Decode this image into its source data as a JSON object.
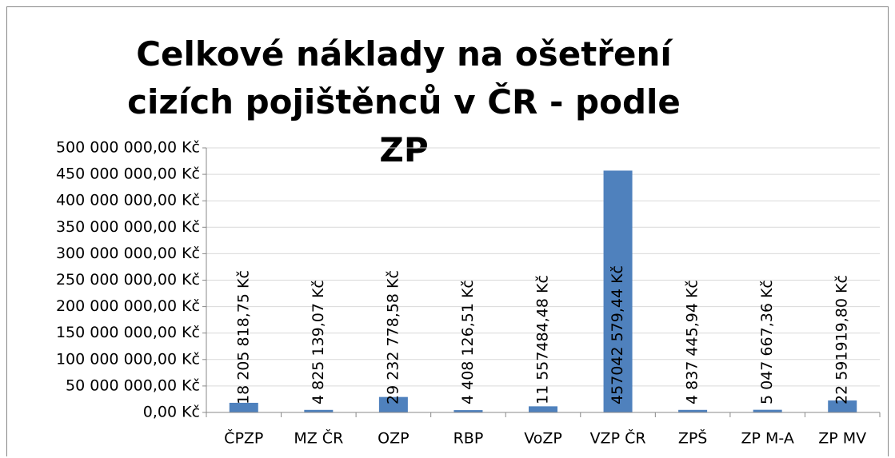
{
  "chart_data": {
    "type": "bar",
    "title": "Celkové náklady na ošetření cizích pojištěnců v ČR - podle ZP",
    "categories": [
      "ČPZP",
      "MZ ČR",
      "OZP",
      "RBP",
      "VoZP",
      "VZP ČR",
      "ZPŠ",
      "ZP M-A",
      "ZP MV"
    ],
    "values": [
      18205818.75,
      4825139.07,
      29232778.58,
      4408126.51,
      11557484.48,
      457042579.44,
      4837445.94,
      5047667.36,
      22591919.8
    ],
    "value_labels": [
      "18 205 818,75 Kč",
      "4 825 139,07 Kč",
      "29 232 778,58 Kč",
      "4 408 126,51 Kč",
      "11 557484,48 Kč",
      "457042 579,44 Kč",
      "4 837 445,94 Kč",
      "5 047 667,36 Kč",
      "22 591919,80 Kč"
    ],
    "color": "#4f81bd",
    "ylim": [
      0,
      500000000
    ],
    "yticks": [
      {
        "value": 0,
        "label": "0,00 Kč"
      },
      {
        "value": 50000000,
        "label": "50 000 000,00 Kč"
      },
      {
        "value": 100000000,
        "label": "100 000 000,00 Kč"
      },
      {
        "value": 150000000,
        "label": "150 000 000,00 Kč"
      },
      {
        "value": 200000000,
        "label": "200 000 000,00 Kč"
      },
      {
        "value": 250000000,
        "label": "250 000 000,00 Kč"
      },
      {
        "value": 300000000,
        "label": "300 000 000,00 Kč"
      },
      {
        "value": 350000000,
        "label": "350 000 000,00 Kč"
      },
      {
        "value": 400000000,
        "label": "400 000 000,00 Kč"
      },
      {
        "value": 450000000,
        "label": "450 000 000,00 Kč"
      },
      {
        "value": 500000000,
        "label": "500 000 000,00 Kč"
      }
    ],
    "grid": true
  }
}
